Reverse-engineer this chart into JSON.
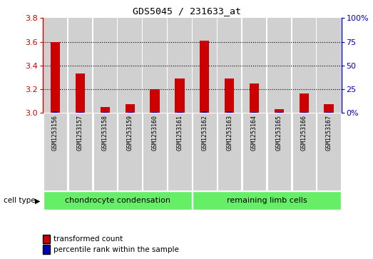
{
  "title": "GDS5045 / 231633_at",
  "samples": [
    "GSM1253156",
    "GSM1253157",
    "GSM1253158",
    "GSM1253159",
    "GSM1253160",
    "GSM1253161",
    "GSM1253162",
    "GSM1253163",
    "GSM1253164",
    "GSM1253165",
    "GSM1253166",
    "GSM1253167"
  ],
  "red_values": [
    3.6,
    3.33,
    3.05,
    3.07,
    3.2,
    3.29,
    3.61,
    3.29,
    3.25,
    3.03,
    3.16,
    3.07
  ],
  "blue_percentiles": [
    10,
    8,
    5,
    7,
    8,
    7,
    10,
    9,
    8,
    5,
    7,
    8
  ],
  "ymin": 3.0,
  "ymax": 3.8,
  "y2min": 0,
  "y2max": 100,
  "yticks": [
    3.0,
    3.2,
    3.4,
    3.6,
    3.8
  ],
  "y2ticks": [
    0,
    25,
    50,
    75,
    100
  ],
  "y2ticklabels": [
    "0%",
    "25",
    "50",
    "75",
    "100%"
  ],
  "grid_lines": [
    3.2,
    3.4,
    3.6
  ],
  "group1_label": "chondrocyte condensation",
  "group2_label": "remaining limb cells",
  "group_color": "#66ee66",
  "bar_bg_color": "#d0d0d0",
  "red_color": "#cc0000",
  "blue_color": "#0000bb",
  "left_tick_color": "#cc0000",
  "right_tick_color": "#0000bb",
  "legend_red": "transformed count",
  "legend_blue": "percentile rank within the sample",
  "cell_type_label": "cell type"
}
